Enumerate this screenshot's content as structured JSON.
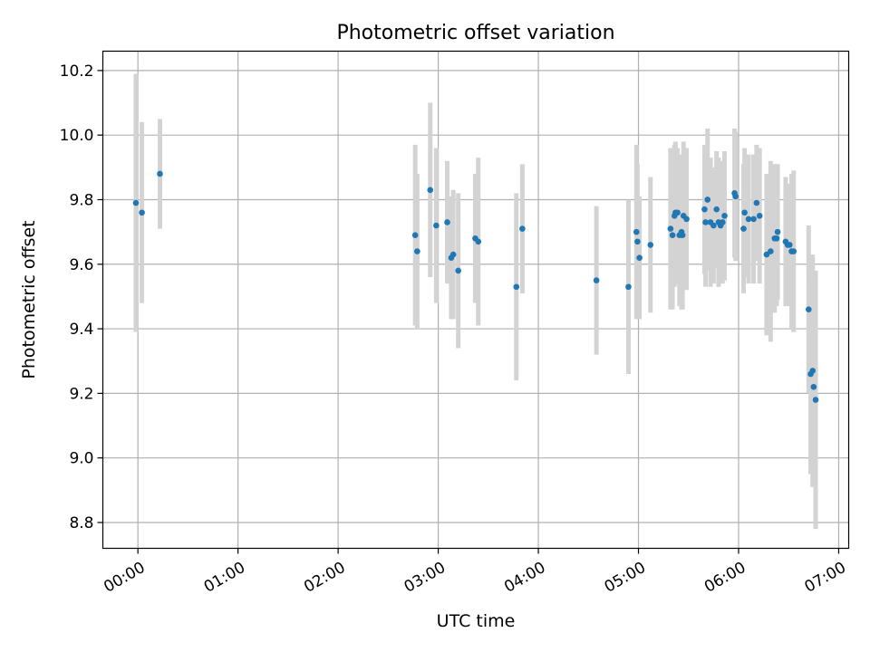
{
  "chart_data": {
    "type": "scatter",
    "title": "Photometric offset variation",
    "xlabel": "UTC time",
    "ylabel": "Photometric offset",
    "x_unit": "hours UTC",
    "xlim": [
      -0.35,
      7.1
    ],
    "ylim": [
      8.72,
      10.26
    ],
    "xticks": [
      {
        "v": 0,
        "label": "00:00"
      },
      {
        "v": 1,
        "label": "01:00"
      },
      {
        "v": 2,
        "label": "02:00"
      },
      {
        "v": 3,
        "label": "03:00"
      },
      {
        "v": 4,
        "label": "04:00"
      },
      {
        "v": 5,
        "label": "05:00"
      },
      {
        "v": 6,
        "label": "06:00"
      },
      {
        "v": 7,
        "label": "07:00"
      }
    ],
    "yticks": [
      {
        "v": 8.8,
        "label": "8.8"
      },
      {
        "v": 9.0,
        "label": "9.0"
      },
      {
        "v": 9.2,
        "label": "9.2"
      },
      {
        "v": 9.4,
        "label": "9.4"
      },
      {
        "v": 9.6,
        "label": "9.6"
      },
      {
        "v": 9.8,
        "label": "9.8"
      },
      {
        "v": 10.0,
        "label": "10.0"
      },
      {
        "v": 10.2,
        "label": "10.2"
      }
    ],
    "grid": true,
    "colors": {
      "points": "#1f77b4",
      "errorbars": "#d3d3d3",
      "grid": "#b0b0b0"
    },
    "points": [
      [
        -0.02,
        9.79,
        0.4
      ],
      [
        0.04,
        9.76,
        0.28
      ],
      [
        0.22,
        9.88,
        0.17
      ],
      [
        2.77,
        9.69,
        0.28
      ],
      [
        2.79,
        9.64,
        0.24
      ],
      [
        2.92,
        9.83,
        0.27
      ],
      [
        2.98,
        9.72,
        0.24
      ],
      [
        3.09,
        9.73,
        0.19
      ],
      [
        3.13,
        9.62,
        0.19
      ],
      [
        3.15,
        9.63,
        0.2
      ],
      [
        3.2,
        9.58,
        0.24
      ],
      [
        3.37,
        9.68,
        0.2
      ],
      [
        3.4,
        9.67,
        0.26
      ],
      [
        3.78,
        9.53,
        0.29
      ],
      [
        3.84,
        9.71,
        0.2
      ],
      [
        4.58,
        9.55,
        0.23
      ],
      [
        4.9,
        9.53,
        0.27
      ],
      [
        4.98,
        9.7,
        0.27
      ],
      [
        4.99,
        9.67,
        0.24
      ],
      [
        5.01,
        9.62,
        0.19
      ],
      [
        5.12,
        9.66,
        0.21
      ],
      [
        5.32,
        9.71,
        0.25
      ],
      [
        5.34,
        9.69,
        0.23
      ],
      [
        5.36,
        9.75,
        0.22
      ],
      [
        5.37,
        9.76,
        0.22
      ],
      [
        5.39,
        9.76,
        0.2
      ],
      [
        5.41,
        9.69,
        0.22
      ],
      [
        5.43,
        9.7,
        0.24
      ],
      [
        5.44,
        9.69,
        0.23
      ],
      [
        5.45,
        9.75,
        0.23
      ],
      [
        5.48,
        9.74,
        0.22
      ],
      [
        5.66,
        9.77,
        0.2
      ],
      [
        5.67,
        9.73,
        0.2
      ],
      [
        5.69,
        9.8,
        0.22
      ],
      [
        5.72,
        9.73,
        0.2
      ],
      [
        5.75,
        9.72,
        0.18
      ],
      [
        5.78,
        9.77,
        0.18
      ],
      [
        5.8,
        9.73,
        0.2
      ],
      [
        5.82,
        9.72,
        0.18
      ],
      [
        5.84,
        9.73,
        0.19
      ],
      [
        5.86,
        9.75,
        0.2
      ],
      [
        5.96,
        9.82,
        0.2
      ],
      [
        5.97,
        9.81,
        0.2
      ],
      [
        6.05,
        9.71,
        0.2
      ],
      [
        6.06,
        9.76,
        0.2
      ],
      [
        6.1,
        9.74,
        0.2
      ],
      [
        6.15,
        9.74,
        0.2
      ],
      [
        6.18,
        9.79,
        0.18
      ],
      [
        6.21,
        9.75,
        0.21
      ],
      [
        6.28,
        9.63,
        0.25
      ],
      [
        6.32,
        9.64,
        0.28
      ],
      [
        6.36,
        9.68,
        0.23
      ],
      [
        6.38,
        9.68,
        0.21
      ],
      [
        6.39,
        9.7,
        0.21
      ],
      [
        6.47,
        9.67,
        0.2
      ],
      [
        6.49,
        9.66,
        0.18
      ],
      [
        6.51,
        9.66,
        0.19
      ],
      [
        6.53,
        9.64,
        0.24
      ],
      [
        6.55,
        9.64,
        0.25
      ],
      [
        6.7,
        9.46,
        0.26
      ],
      [
        6.72,
        9.26,
        0.31
      ],
      [
        6.74,
        9.27,
        0.36
      ],
      [
        6.75,
        9.22,
        0.31
      ],
      [
        6.77,
        9.18,
        0.4
      ]
    ]
  }
}
